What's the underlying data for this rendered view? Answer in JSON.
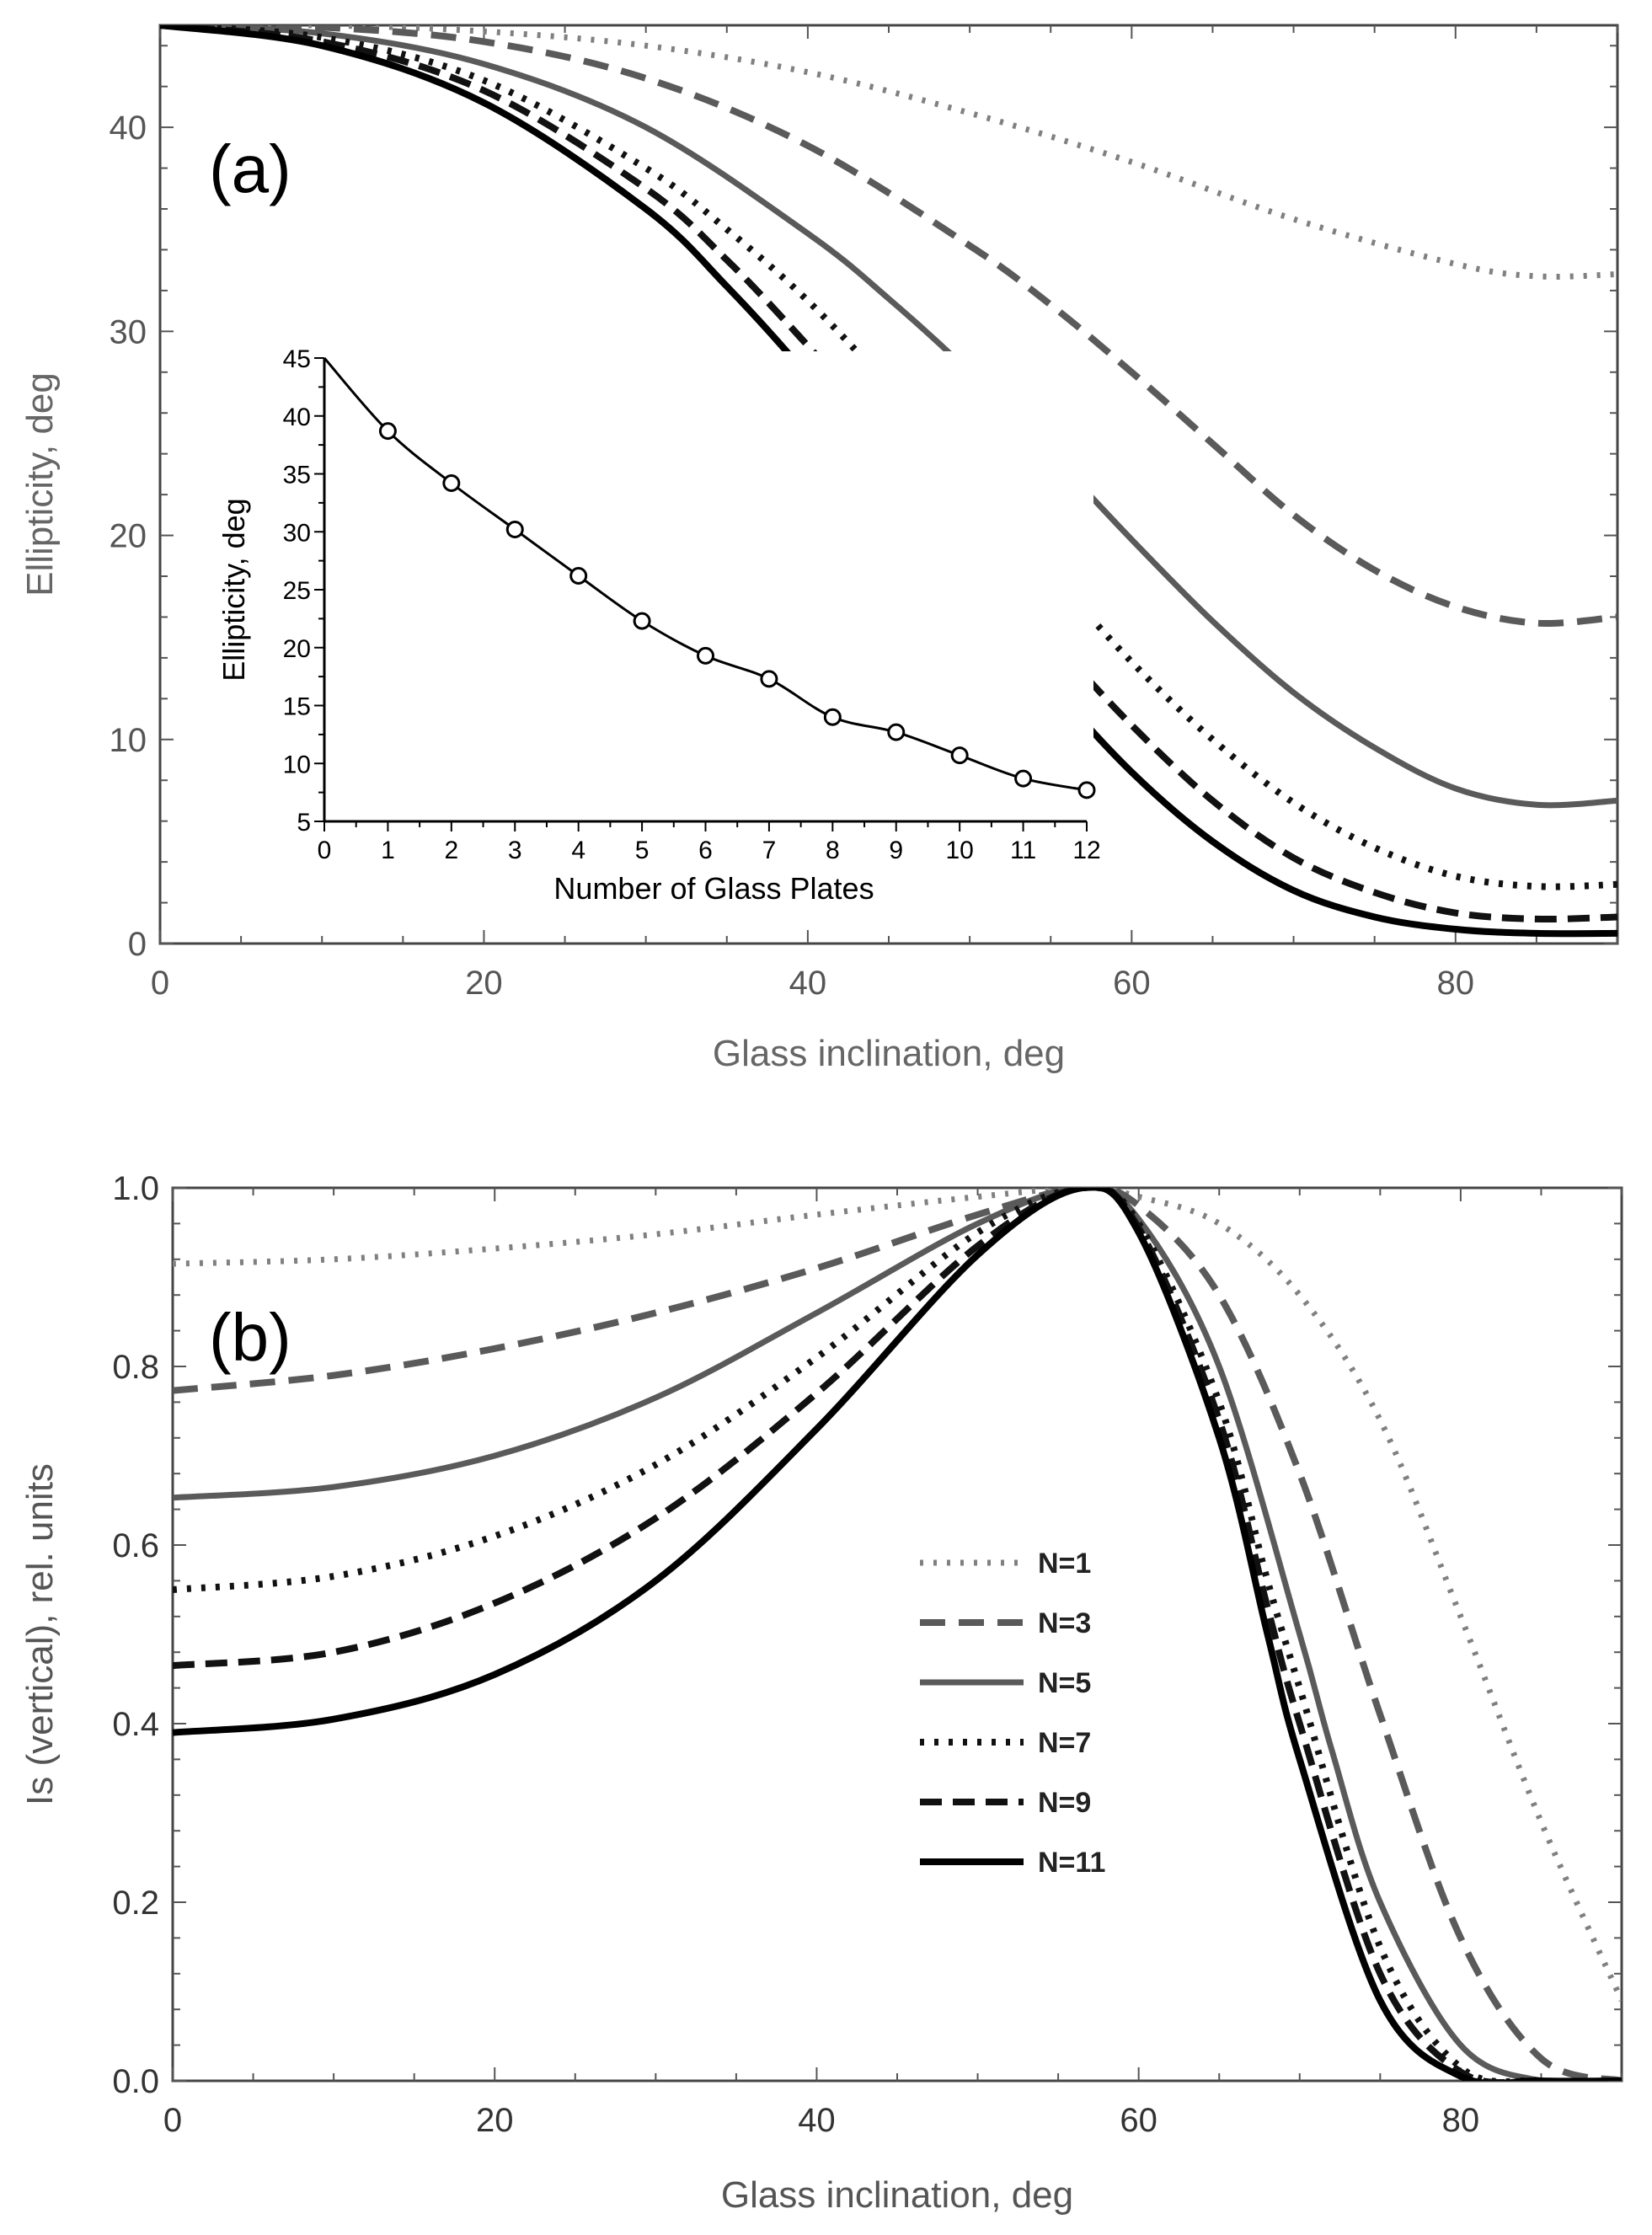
{
  "styles": {
    "N1": {
      "color": "#808080",
      "dash": "4 12",
      "width": 7
    },
    "N3": {
      "color": "#5a5a5a",
      "dash": "30 16",
      "width": 8
    },
    "N5": {
      "color": "#5a5a5a",
      "dash": "",
      "width": 7
    },
    "N7": {
      "color": "#111111",
      "dash": "5 12",
      "width": 8
    },
    "N9": {
      "color": "#111111",
      "dash": "26 13",
      "width": 8
    },
    "N11": {
      "color": "#000000",
      "dash": "",
      "width": 8
    }
  },
  "chart_data": [
    {
      "id": "a",
      "type": "line",
      "panel_label": "(a)",
      "xlabel": "Glass inclination, deg",
      "ylabel": "Ellipticity, deg",
      "xlim": [
        0,
        90
      ],
      "ylim": [
        0,
        45
      ],
      "xticks": [
        0,
        20,
        40,
        60,
        80
      ],
      "yticks": [
        0,
        10,
        20,
        30,
        40
      ],
      "series": [
        {
          "name": "N=1",
          "style": "N1",
          "x": [
            0,
            10,
            20,
            30,
            40,
            50,
            60,
            70,
            80,
            85,
            90
          ],
          "y": [
            45,
            45,
            44.7,
            44,
            42.7,
            40.7,
            38.3,
            35.5,
            33.3,
            32.7,
            32.8
          ]
        },
        {
          "name": "N=3",
          "style": "N3",
          "x": [
            0,
            10,
            20,
            30,
            40,
            50,
            55,
            60,
            65,
            70,
            75,
            80,
            85,
            90
          ],
          "y": [
            45,
            44.9,
            44.2,
            42.4,
            39.1,
            34.2,
            31.3,
            28,
            24.5,
            21,
            18.3,
            16.5,
            15.7,
            16
          ]
        },
        {
          "name": "N=5",
          "style": "N5",
          "x": [
            0,
            10,
            20,
            30,
            40,
            45,
            50,
            55,
            60,
            65,
            70,
            75,
            80,
            85,
            90
          ],
          "y": [
            45,
            44.6,
            43.1,
            40,
            34.8,
            31.6,
            28,
            24,
            19.8,
            15.8,
            12.3,
            9.6,
            7.6,
            6.8,
            7
          ]
        },
        {
          "name": "N=7",
          "style": "N7",
          "x": [
            0,
            10,
            20,
            30,
            35,
            40,
            45,
            50,
            55,
            60,
            65,
            70,
            75,
            80,
            85,
            90
          ],
          "y": [
            45,
            44.4,
            42.3,
            38,
            35,
            31.5,
            27.3,
            22.8,
            18.2,
            13.8,
            10,
            6.9,
            4.7,
            3.3,
            2.8,
            2.9
          ]
        },
        {
          "name": "N=9",
          "style": "N9",
          "x": [
            0,
            10,
            20,
            30,
            35,
            40,
            45,
            50,
            55,
            60,
            65,
            70,
            75,
            80,
            85,
            90
          ],
          "y": [
            45,
            44.2,
            41.8,
            37,
            33.5,
            29.3,
            24.8,
            19.8,
            15,
            10.7,
            7,
            4.2,
            2.5,
            1.5,
            1.2,
            1.3
          ]
        },
        {
          "name": "N=11",
          "style": "N11",
          "x": [
            0,
            10,
            20,
            30,
            35,
            40,
            45,
            50,
            55,
            60,
            65,
            70,
            75,
            80,
            85,
            90
          ],
          "y": [
            45,
            44,
            41.2,
            36,
            32.2,
            27.8,
            22.7,
            17.5,
            12.7,
            8.4,
            5,
            2.6,
            1.3,
            0.7,
            0.5,
            0.5
          ]
        }
      ],
      "inset": {
        "type": "line",
        "xlabel": "Number of Glass Plates",
        "ylabel": "Ellipticity, deg",
        "xlim": [
          0,
          12
        ],
        "ylim": [
          5,
          45
        ],
        "xticks": [
          0,
          1,
          2,
          3,
          4,
          5,
          6,
          7,
          8,
          9,
          10,
          11,
          12
        ],
        "yticks": [
          5,
          10,
          15,
          20,
          25,
          30,
          35,
          40,
          45
        ],
        "x": [
          0,
          1,
          2,
          3,
          4,
          5,
          6,
          7,
          8,
          9,
          10,
          11,
          12
        ],
        "y": [
          45,
          38.7,
          34.2,
          30.2,
          26.2,
          22.3,
          19.3,
          17.3,
          14,
          12.7,
          10.7,
          8.7,
          7.7
        ]
      }
    },
    {
      "id": "b",
      "type": "line",
      "panel_label": "(b)",
      "xlabel": "Glass inclination, deg",
      "ylabel": "Is (vertical), rel. units",
      "xlim": [
        0,
        90
      ],
      "ylim": [
        0,
        1
      ],
      "xticks": [
        0,
        20,
        40,
        60,
        80
      ],
      "yticks": [
        0.0,
        0.2,
        0.4,
        0.6,
        0.8,
        1.0
      ],
      "ytick_labels": [
        "0.0",
        "0.2",
        "0.4",
        "0.6",
        "0.8",
        "1.0"
      ],
      "legend_position": "center-right",
      "series": [
        {
          "name": "N=1",
          "style": "N1",
          "x": [
            0,
            10,
            20,
            30,
            40,
            50,
            56.5,
            60,
            65,
            70,
            75,
            80,
            85,
            90
          ],
          "y": [
            0.915,
            0.92,
            0.932,
            0.948,
            0.97,
            0.99,
            1.0,
            0.99,
            0.96,
            0.88,
            0.74,
            0.52,
            0.29,
            0.09
          ]
        },
        {
          "name": "N=3",
          "style": "N3",
          "x": [
            0,
            10,
            20,
            30,
            40,
            50,
            56.5,
            60,
            65,
            70,
            75,
            80,
            85,
            90
          ],
          "y": [
            0.773,
            0.79,
            0.82,
            0.86,
            0.91,
            0.97,
            1.0,
            0.98,
            0.88,
            0.68,
            0.41,
            0.16,
            0.025,
            0.0
          ]
        },
        {
          "name": "N=5",
          "style": "N5",
          "x": [
            0,
            10,
            20,
            30,
            40,
            50,
            56.5,
            60,
            65,
            70,
            72,
            75,
            80,
            85,
            90
          ],
          "y": [
            0.653,
            0.665,
            0.7,
            0.765,
            0.86,
            0.96,
            1.0,
            0.965,
            0.8,
            0.5,
            0.37,
            0.2,
            0.04,
            0.0,
            0.0
          ]
        },
        {
          "name": "N=7",
          "style": "N7",
          "x": [
            0,
            10,
            20,
            30,
            40,
            50,
            56.5,
            60,
            65,
            68,
            70,
            75,
            80,
            85,
            90
          ],
          "y": [
            0.55,
            0.565,
            0.61,
            0.69,
            0.81,
            0.95,
            1.0,
            0.96,
            0.76,
            0.56,
            0.44,
            0.15,
            0.015,
            0.0,
            0.0
          ]
        },
        {
          "name": "N=9",
          "style": "N9",
          "x": [
            0,
            10,
            20,
            30,
            40,
            50,
            56.5,
            60,
            65,
            68,
            70,
            75,
            80,
            85,
            90
          ],
          "y": [
            0.465,
            0.48,
            0.535,
            0.63,
            0.77,
            0.935,
            1.0,
            0.955,
            0.74,
            0.53,
            0.4,
            0.12,
            0.01,
            0.0,
            0.0
          ]
        },
        {
          "name": "N=11",
          "style": "N11",
          "x": [
            0,
            10,
            20,
            30,
            40,
            50,
            56.5,
            60,
            65,
            68,
            70,
            75,
            80,
            85,
            90
          ],
          "y": [
            0.39,
            0.405,
            0.455,
            0.56,
            0.73,
            0.925,
            1.0,
            0.95,
            0.72,
            0.5,
            0.36,
            0.09,
            0.005,
            0.0,
            0.0
          ]
        }
      ]
    }
  ]
}
